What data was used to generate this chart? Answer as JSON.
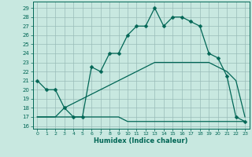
{
  "xlabel": "Humidex (Indice chaleur)",
  "bg_color": "#c8e8e0",
  "grid_color": "#9abcb8",
  "line_color": "#006655",
  "xlim": [
    -0.5,
    23.5
  ],
  "ylim": [
    15.7,
    29.7
  ],
  "xticks": [
    0,
    1,
    2,
    3,
    4,
    5,
    6,
    7,
    8,
    9,
    10,
    11,
    12,
    13,
    14,
    15,
    16,
    17,
    18,
    19,
    20,
    21,
    22,
    23
  ],
  "yticks": [
    16,
    17,
    18,
    19,
    20,
    21,
    22,
    23,
    24,
    25,
    26,
    27,
    28,
    29
  ],
  "line1_x": [
    0,
    1,
    2,
    3,
    4,
    5,
    6,
    7,
    8,
    9,
    10,
    11,
    12,
    13,
    14,
    15,
    16,
    17,
    18,
    19,
    20,
    21,
    22,
    23
  ],
  "line1_y": [
    21,
    20,
    20,
    18,
    17,
    17,
    22.5,
    22,
    24,
    24,
    26,
    27,
    27,
    29,
    27,
    28,
    28,
    27.5,
    27,
    24,
    23.5,
    21.5,
    17,
    16.5
  ],
  "line2_x": [
    0,
    1,
    2,
    3,
    4,
    5,
    6,
    7,
    8,
    9,
    10,
    11,
    12,
    13,
    14,
    15,
    16,
    17,
    18,
    19,
    20,
    21,
    22,
    23
  ],
  "line2_y": [
    17,
    17,
    17,
    17,
    17,
    17,
    17,
    17,
    17,
    17,
    16.5,
    16.5,
    16.5,
    16.5,
    16.5,
    16.5,
    16.5,
    16.5,
    16.5,
    16.5,
    16.5,
    16.5,
    16.5,
    16.5
  ],
  "line3_x": [
    0,
    1,
    2,
    3,
    4,
    5,
    6,
    7,
    8,
    9,
    10,
    11,
    12,
    13,
    14,
    15,
    16,
    17,
    18,
    19,
    20,
    21,
    22,
    23
  ],
  "line3_y": [
    17,
    17,
    17,
    18,
    18.5,
    19,
    19.5,
    20,
    20.5,
    21,
    21.5,
    22,
    22.5,
    23,
    23,
    23,
    23,
    23,
    23,
    23,
    22.5,
    22,
    21,
    17
  ],
  "markersize": 2.5
}
